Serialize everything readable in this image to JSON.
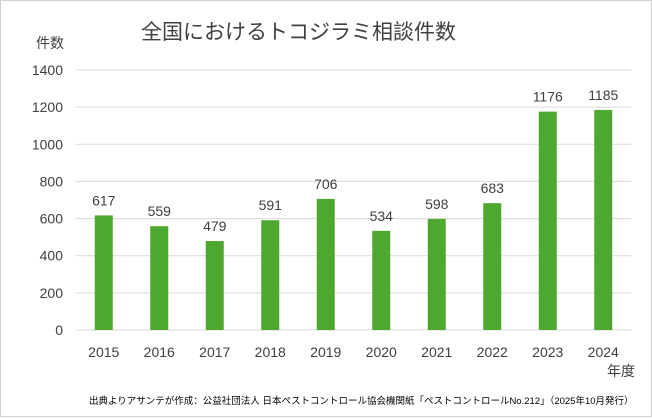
{
  "chart_data": {
    "type": "bar",
    "title": "全国におけるトコジラミ相談件数",
    "ylabel": "件数",
    "xlabel": "年度",
    "categories": [
      "2015",
      "2016",
      "2017",
      "2018",
      "2019",
      "2020",
      "2021",
      "2022",
      "2023",
      "2024"
    ],
    "values": [
      617,
      559,
      479,
      591,
      706,
      534,
      598,
      683,
      1176,
      1185
    ],
    "ylim": [
      0,
      1400
    ],
    "yticks": [
      0,
      200,
      400,
      600,
      800,
      1000,
      1200,
      1400
    ],
    "grid": true,
    "bar_color": "#4ea72e",
    "source": "出典よりアサンテが作成：公益社団法人 日本ペストコントロール協会機関紙「ペストコントロールNo.212」（2025年10月発行）"
  }
}
